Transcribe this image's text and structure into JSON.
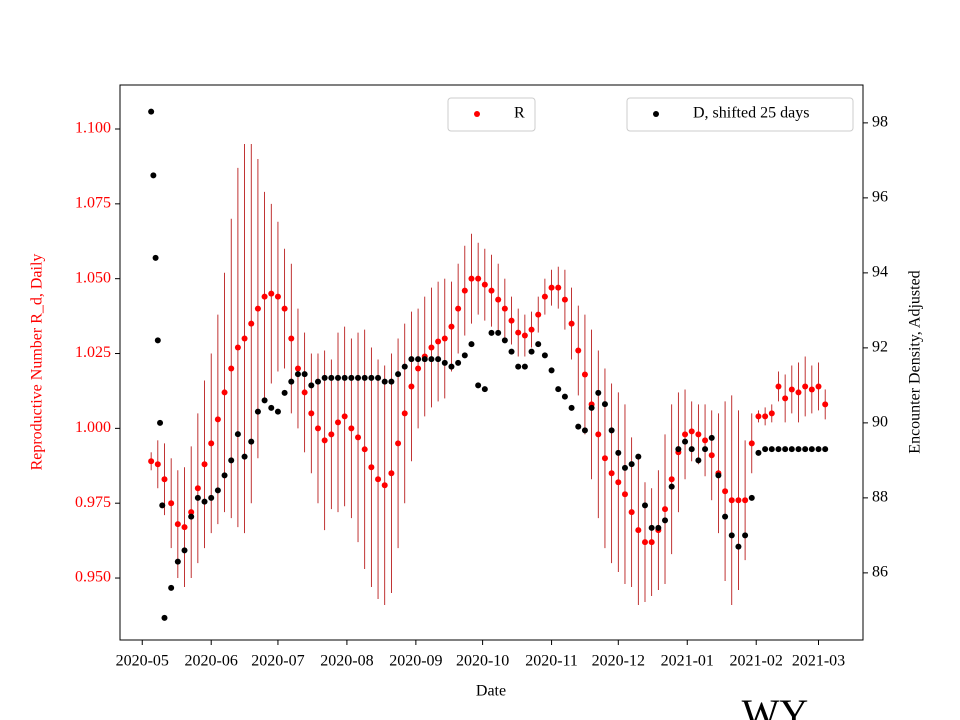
{
  "chart_data": {
    "type": "scatter",
    "xlabel": "Date",
    "ylabel": "Reproductive Number R_d, Daily",
    "y2label": "Encounter Density, Adjusted",
    "annotation": "WY",
    "xlim": [
      "2020-04-21",
      "2021-03-21"
    ],
    "xticks": [
      "2020-05",
      "2020-06",
      "2020-07",
      "2020-08",
      "2020-09",
      "2020-10",
      "2020-11",
      "2020-12",
      "2021-01",
      "2021-02",
      "2021-03"
    ],
    "ylim": [
      0.9293,
      1.1147
    ],
    "yticks": [
      {
        "value": 0.95,
        "label": "0.950"
      },
      {
        "value": 0.975,
        "label": "0.975"
      },
      {
        "value": 1.0,
        "label": "1.000"
      },
      {
        "value": 1.025,
        "label": "1.025"
      },
      {
        "value": 1.05,
        "label": "1.050"
      },
      {
        "value": 1.075,
        "label": "1.075"
      },
      {
        "value": 1.1,
        "label": "1.100"
      }
    ],
    "y2lim": [
      84.21,
      99.01
    ],
    "y2ticks": [
      86,
      88,
      90,
      92,
      94,
      96,
      98
    ],
    "ylabel_color": "#ff0000",
    "series": [
      {
        "name": "R",
        "color": "#ff0000",
        "error_color": "#b00000",
        "legend": "upper center",
        "x": [
          "2020-05-05",
          "2020-05-08",
          "2020-05-11",
          "2020-05-14",
          "2020-05-17",
          "2020-05-20",
          "2020-05-23",
          "2020-05-26",
          "2020-05-29",
          "2020-06-01",
          "2020-06-04",
          "2020-06-07",
          "2020-06-10",
          "2020-06-13",
          "2020-06-16",
          "2020-06-19",
          "2020-06-22",
          "2020-06-25",
          "2020-06-28",
          "2020-07-01",
          "2020-07-04",
          "2020-07-07",
          "2020-07-10",
          "2020-07-13",
          "2020-07-16",
          "2020-07-19",
          "2020-07-22",
          "2020-07-25",
          "2020-07-28",
          "2020-07-31",
          "2020-08-03",
          "2020-08-06",
          "2020-08-09",
          "2020-08-12",
          "2020-08-15",
          "2020-08-18",
          "2020-08-21",
          "2020-08-24",
          "2020-08-27",
          "2020-08-30",
          "2020-09-02",
          "2020-09-05",
          "2020-09-08",
          "2020-09-11",
          "2020-09-14",
          "2020-09-17",
          "2020-09-20",
          "2020-09-23",
          "2020-09-26",
          "2020-09-29",
          "2020-10-02",
          "2020-10-05",
          "2020-10-08",
          "2020-10-11",
          "2020-10-14",
          "2020-10-17",
          "2020-10-20",
          "2020-10-23",
          "2020-10-26",
          "2020-10-29",
          "2020-11-01",
          "2020-11-04",
          "2020-11-07",
          "2020-11-10",
          "2020-11-13",
          "2020-11-16",
          "2020-11-19",
          "2020-11-22",
          "2020-11-25",
          "2020-11-28",
          "2020-12-01",
          "2020-12-04",
          "2020-12-07",
          "2020-12-10",
          "2020-12-13",
          "2020-12-16",
          "2020-12-19",
          "2020-12-22",
          "2020-12-25",
          "2020-12-28",
          "2020-12-31",
          "2021-01-03",
          "2021-01-06",
          "2021-01-09",
          "2021-01-12",
          "2021-01-15",
          "2021-01-18",
          "2021-01-21",
          "2021-01-24",
          "2021-01-27",
          "2021-01-30",
          "2021-02-02",
          "2021-02-05",
          "2021-02-08",
          "2021-02-11",
          "2021-02-14",
          "2021-02-17",
          "2021-02-20",
          "2021-02-23",
          "2021-02-26",
          "2021-03-01",
          "2021-03-04"
        ],
        "values": [
          0.989,
          0.988,
          0.983,
          0.975,
          0.968,
          0.967,
          0.972,
          0.98,
          0.988,
          0.995,
          1.003,
          1.012,
          1.02,
          1.027,
          1.03,
          1.035,
          1.04,
          1.044,
          1.045,
          1.044,
          1.04,
          1.03,
          1.02,
          1.012,
          1.005,
          1.0,
          0.996,
          0.998,
          1.002,
          1.004,
          1.0,
          0.997,
          0.993,
          0.987,
          0.983,
          0.981,
          0.985,
          0.995,
          1.005,
          1.014,
          1.02,
          1.024,
          1.027,
          1.029,
          1.03,
          1.034,
          1.04,
          1.046,
          1.05,
          1.05,
          1.048,
          1.046,
          1.043,
          1.04,
          1.036,
          1.032,
          1.031,
          1.033,
          1.038,
          1.044,
          1.047,
          1.047,
          1.043,
          1.035,
          1.026,
          1.018,
          1.008,
          0.998,
          0.99,
          0.985,
          0.982,
          0.978,
          0.972,
          0.966,
          0.962,
          0.962,
          0.966,
          0.973,
          0.983,
          0.992,
          0.998,
          0.999,
          0.998,
          0.996,
          0.991,
          0.985,
          0.979,
          0.976,
          0.976,
          0.976,
          0.995,
          1.004,
          1.004,
          1.005,
          1.014,
          1.01,
          1.013,
          1.012,
          1.014,
          1.013,
          1.014,
          1.008
        ],
        "errors": [
          0.003,
          0.008,
          0.012,
          0.015,
          0.018,
          0.02,
          0.022,
          0.025,
          0.028,
          0.03,
          0.035,
          0.04,
          0.05,
          0.06,
          0.065,
          0.06,
          0.05,
          0.035,
          0.03,
          0.025,
          0.02,
          0.025,
          0.02,
          0.02,
          0.02,
          0.025,
          0.03,
          0.025,
          0.03,
          0.03,
          0.03,
          0.035,
          0.04,
          0.04,
          0.04,
          0.04,
          0.04,
          0.035,
          0.03,
          0.025,
          0.02,
          0.02,
          0.02,
          0.02,
          0.02,
          0.015,
          0.015,
          0.015,
          0.015,
          0.012,
          0.012,
          0.012,
          0.012,
          0.01,
          0.008,
          0.008,
          0.007,
          0.006,
          0.006,
          0.006,
          0.006,
          0.007,
          0.01,
          0.012,
          0.015,
          0.02,
          0.025,
          0.028,
          0.03,
          0.03,
          0.03,
          0.03,
          0.025,
          0.025,
          0.02,
          0.018,
          0.02,
          0.025,
          0.025,
          0.02,
          0.015,
          0.01,
          0.01,
          0.012,
          0.015,
          0.02,
          0.03,
          0.035,
          0.03,
          0.02,
          0.01,
          0.002,
          0.003,
          0.003,
          0.005,
          0.008,
          0.008,
          0.01,
          0.01,
          0.008,
          0.008,
          0.005
        ]
      },
      {
        "name": "D, shifted 25 days",
        "color": "#000000",
        "axis": "y2",
        "legend": "upper right",
        "x": [
          "2020-05-05",
          "2020-05-06",
          "2020-05-07",
          "2020-05-08",
          "2020-05-09",
          "2020-05-10",
          "2020-05-11",
          "2020-05-14",
          "2020-05-17",
          "2020-05-20",
          "2020-05-23",
          "2020-05-26",
          "2020-05-29",
          "2020-06-01",
          "2020-06-04",
          "2020-06-07",
          "2020-06-10",
          "2020-06-13",
          "2020-06-16",
          "2020-06-19",
          "2020-06-22",
          "2020-06-25",
          "2020-06-28",
          "2020-07-01",
          "2020-07-04",
          "2020-07-07",
          "2020-07-10",
          "2020-07-13",
          "2020-07-16",
          "2020-07-19",
          "2020-07-22",
          "2020-07-25",
          "2020-07-28",
          "2020-07-31",
          "2020-08-03",
          "2020-08-06",
          "2020-08-09",
          "2020-08-12",
          "2020-08-15",
          "2020-08-18",
          "2020-08-21",
          "2020-08-24",
          "2020-08-27",
          "2020-08-30",
          "2020-09-02",
          "2020-09-05",
          "2020-09-08",
          "2020-09-11",
          "2020-09-14",
          "2020-09-17",
          "2020-09-20",
          "2020-09-23",
          "2020-09-26",
          "2020-09-29",
          "2020-10-02",
          "2020-10-05",
          "2020-10-08",
          "2020-10-11",
          "2020-10-14",
          "2020-10-17",
          "2020-10-20",
          "2020-10-23",
          "2020-10-26",
          "2020-10-29",
          "2020-11-01",
          "2020-11-04",
          "2020-11-07",
          "2020-11-10",
          "2020-11-13",
          "2020-11-16",
          "2020-11-19",
          "2020-11-22",
          "2020-11-25",
          "2020-11-28",
          "2020-12-01",
          "2020-12-04",
          "2020-12-07",
          "2020-12-10",
          "2020-12-13",
          "2020-12-16",
          "2020-12-19",
          "2020-12-22",
          "2020-12-25",
          "2020-12-28",
          "2020-12-31",
          "2021-01-03",
          "2021-01-06",
          "2021-01-09",
          "2021-01-12",
          "2021-01-15",
          "2021-01-18",
          "2021-01-21",
          "2021-01-24",
          "2021-01-27",
          "2021-01-30",
          "2021-02-02",
          "2021-02-05",
          "2021-02-08",
          "2021-02-11",
          "2021-02-14",
          "2021-02-17",
          "2021-02-20",
          "2021-02-23",
          "2021-02-26",
          "2021-03-01",
          "2021-03-04"
        ],
        "values": [
          98.3,
          96.6,
          94.4,
          92.2,
          90.0,
          87.8,
          84.8,
          85.6,
          86.3,
          86.6,
          87.5,
          88.0,
          87.9,
          88.0,
          88.2,
          88.6,
          89.0,
          89.7,
          89.1,
          89.5,
          90.3,
          90.6,
          90.4,
          90.3,
          90.8,
          91.1,
          91.3,
          91.3,
          91.0,
          91.1,
          91.2,
          91.2,
          91.2,
          91.2,
          91.2,
          91.2,
          91.2,
          91.2,
          91.2,
          91.1,
          91.1,
          91.3,
          91.5,
          91.7,
          91.7,
          91.7,
          91.7,
          91.7,
          91.6,
          91.5,
          91.6,
          91.8,
          92.1,
          91.0,
          90.9,
          92.4,
          92.4,
          92.2,
          91.9,
          91.5,
          91.5,
          91.9,
          92.1,
          91.8,
          91.4,
          90.9,
          90.7,
          90.4,
          89.9,
          89.8,
          90.4,
          90.8,
          90.5,
          89.8,
          89.2,
          88.8,
          88.9,
          89.1,
          87.8,
          87.2,
          87.2,
          87.4,
          88.3,
          89.3,
          89.5,
          89.3,
          89.0,
          89.3,
          89.6,
          88.6,
          87.5,
          87.0,
          86.7,
          87.0,
          88.0,
          89.2,
          89.3,
          89.3,
          89.3,
          89.3,
          89.3,
          89.3,
          89.3,
          89.3,
          89.3,
          89.3
        ]
      }
    ]
  }
}
